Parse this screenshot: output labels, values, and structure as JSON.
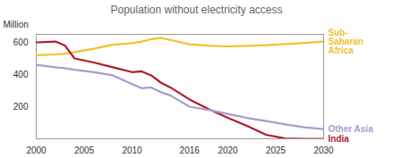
{
  "chart_data": {
    "type": "line",
    "title": "Population without electricity access",
    "y_label": "Million",
    "x": [
      2000,
      2002,
      2003,
      2004,
      2006,
      2008,
      2010,
      2011,
      2012,
      2013,
      2014,
      2016,
      2018,
      2020,
      2022,
      2024,
      2026,
      2028,
      2030
    ],
    "series": [
      {
        "name": "Sub-Saharan Africa",
        "color": "#f2c12e",
        "values": [
          520,
          525,
          530,
          540,
          560,
          585,
          595,
          605,
          620,
          628,
          615,
          588,
          580,
          575,
          578,
          583,
          590,
          597,
          605
        ]
      },
      {
        "name": "India",
        "color": "#b01c2e",
        "values": [
          600,
          605,
          580,
          500,
          475,
          445,
          415,
          420,
          395,
          350,
          320,
          245,
          185,
          130,
          80,
          25,
          2,
          0,
          0
        ]
      },
      {
        "name": "Other Asia",
        "color": "#a99bd0",
        "values": [
          460,
          445,
          440,
          430,
          415,
          395,
          340,
          315,
          320,
          290,
          270,
          200,
          180,
          155,
          130,
          110,
          90,
          72,
          60
        ]
      }
    ],
    "xlim": [
      2000,
      2030
    ],
    "xticks": [
      2000,
      2005,
      2010,
      2016,
      2020,
      2025,
      2030
    ],
    "ylim": [
      0,
      650
    ],
    "yticks": [
      200,
      400,
      600
    ],
    "grid": false
  }
}
